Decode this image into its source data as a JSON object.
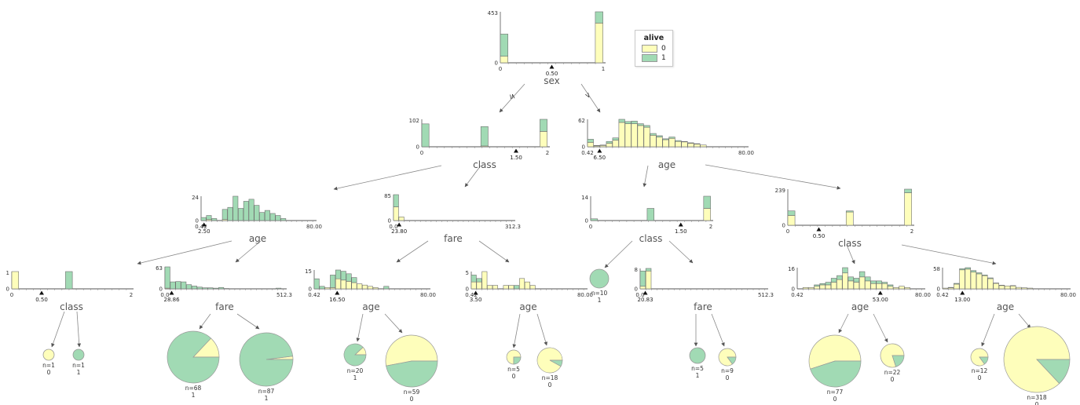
{
  "legend": {
    "title": "alive",
    "entries": [
      {
        "label": "0",
        "color": "#fefebb"
      },
      {
        "label": "1",
        "color": "#a1dab4"
      }
    ]
  },
  "edge_labels": {
    "left": "≤",
    "right": ">"
  },
  "colors": {
    "class0": "#fefebb",
    "class1": "#a1dab4",
    "bar_edge": "#707070",
    "axis": "#555555",
    "tick_text": "#333333",
    "feature_text": "#555555",
    "edge_line": "#888888"
  },
  "chart_data": [
    {
      "id": "root",
      "type": "histogram",
      "feature": "sex",
      "y_max": 453,
      "bin_w": 0.077,
      "x_ticks": [
        {
          "p": 0,
          "label": "0"
        },
        {
          "p": 1,
          "label": "1"
        }
      ],
      "split": {
        "p": 0.5,
        "label": "0.50"
      },
      "bars": [
        [
          0,
          58,
          197
        ],
        [
          0.923,
          353,
          100
        ]
      ]
    },
    {
      "id": "n2l",
      "type": "histogram",
      "feature": "class",
      "y_max": 102,
      "bin_w": 0.06,
      "x_ticks": [
        {
          "p": 0,
          "label": "0"
        },
        {
          "p": 1,
          "label": "2"
        }
      ],
      "split": {
        "p": 0.75,
        "label": "1.50"
      },
      "bars": [
        [
          0,
          0,
          85
        ],
        [
          0.47,
          3,
          72
        ],
        [
          0.94,
          57,
          45
        ]
      ]
    },
    {
      "id": "n2r",
      "type": "histogram",
      "feature": "age",
      "y_max": 62,
      "bin_w": 0.0395,
      "x_ticks": [
        {
          "p": 0,
          "label": "0.42"
        },
        {
          "p": 1,
          "label": "80.00"
        }
      ],
      "split": {
        "p": 0.076,
        "label": "6.50"
      },
      "bars": [
        [
          0,
          10,
          7
        ],
        [
          0.0395,
          2,
          1
        ],
        [
          0.079,
          3,
          1
        ],
        [
          0.1185,
          8,
          4
        ],
        [
          0.158,
          15,
          5
        ],
        [
          0.1975,
          55,
          7
        ],
        [
          0.237,
          52,
          5
        ],
        [
          0.2765,
          52,
          6
        ],
        [
          0.316,
          48,
          4
        ],
        [
          0.3555,
          44,
          4
        ],
        [
          0.395,
          26,
          4
        ],
        [
          0.4345,
          22,
          3
        ],
        [
          0.474,
          16,
          2
        ],
        [
          0.5135,
          19,
          3
        ],
        [
          0.553,
          12,
          2
        ],
        [
          0.5925,
          11,
          1
        ],
        [
          0.632,
          8,
          1
        ],
        [
          0.6715,
          6,
          1
        ],
        [
          0.711,
          4,
          0
        ]
      ]
    },
    {
      "id": "n3a",
      "type": "histogram",
      "feature": "age",
      "y_max": 24,
      "bin_w": 0.047,
      "x_ticks": [
        {
          "p": 0,
          "label": "0.42"
        },
        {
          "p": 1,
          "label": "80.00"
        }
      ],
      "split": {
        "p": 0.026,
        "label": "2.50"
      },
      "bars": [
        [
          0,
          0,
          3
        ],
        [
          0.047,
          1,
          4
        ],
        [
          0.094,
          0,
          2
        ],
        [
          0.188,
          1,
          10
        ],
        [
          0.235,
          0,
          13
        ],
        [
          0.282,
          0,
          24
        ],
        [
          0.329,
          0,
          12
        ],
        [
          0.376,
          0,
          19
        ],
        [
          0.423,
          0,
          21
        ],
        [
          0.47,
          0,
          15
        ],
        [
          0.517,
          0,
          8
        ],
        [
          0.564,
          0,
          10
        ],
        [
          0.611,
          0,
          7
        ],
        [
          0.658,
          0,
          5
        ],
        [
          0.705,
          0,
          2
        ]
      ]
    },
    {
      "id": "n3b",
      "type": "histogram",
      "feature": "fare",
      "y_max": 85,
      "bin_w": 0.045,
      "x_ticks": [
        {
          "p": 0,
          "label": "0.0"
        },
        {
          "p": 1,
          "label": "312.3"
        }
      ],
      "split": {
        "p": 0.047,
        "label": "23.80"
      },
      "bars": [
        [
          0,
          45,
          40
        ],
        [
          0.045,
          12,
          0
        ]
      ]
    },
    {
      "id": "n3c",
      "type": "histogram",
      "feature": "class",
      "y_max": 14,
      "bin_w": 0.06,
      "x_ticks": [
        {
          "p": 0,
          "label": "0"
        },
        {
          "p": 1,
          "label": "2"
        }
      ],
      "split": {
        "p": 0.75,
        "label": "1.50"
      },
      "bars": [
        [
          0,
          0,
          1
        ],
        [
          0.47,
          0,
          7
        ],
        [
          0.94,
          7,
          7
        ]
      ]
    },
    {
      "id": "n3d",
      "type": "histogram",
      "feature": "class",
      "y_max": 239,
      "bin_w": 0.06,
      "x_ticks": [
        {
          "p": 0,
          "label": "0"
        },
        {
          "p": 1,
          "label": "2"
        }
      ],
      "split": {
        "p": 0.25,
        "label": "0.50"
      },
      "bars": [
        [
          0,
          65,
          30
        ],
        [
          0.47,
          88,
          7
        ],
        [
          0.94,
          215,
          24
        ]
      ]
    },
    {
      "id": "n4a",
      "type": "histogram",
      "feature": "class",
      "y_max": 1,
      "bin_w": 0.06,
      "x_ticks": [
        {
          "p": 0,
          "label": "0"
        },
        {
          "p": 1,
          "label": "2"
        }
      ],
      "split": {
        "p": 0.25,
        "label": "0.50"
      },
      "bars": [
        [
          0,
          1,
          0
        ],
        [
          0.45,
          0,
          1
        ]
      ]
    },
    {
      "id": "n4b",
      "type": "histogram",
      "feature": "fare",
      "y_max": 63,
      "bin_w": 0.045,
      "x_ticks": [
        {
          "p": 0,
          "label": "0.0"
        },
        {
          "p": 1,
          "label": "512.3"
        }
      ],
      "split": {
        "p": 0.056,
        "label": "28.86"
      },
      "bars": [
        [
          0,
          2,
          61
        ],
        [
          0.045,
          0,
          20
        ],
        [
          0.09,
          0,
          21
        ],
        [
          0.135,
          0,
          20
        ],
        [
          0.18,
          0,
          12
        ],
        [
          0.225,
          0,
          8
        ],
        [
          0.27,
          0,
          5
        ],
        [
          0.315,
          0,
          3
        ],
        [
          0.36,
          0,
          3
        ],
        [
          0.405,
          0,
          2
        ],
        [
          0.45,
          0,
          4
        ],
        [
          0.495,
          0,
          1
        ],
        [
          0.93,
          0,
          2
        ]
      ]
    },
    {
      "id": "n4c",
      "type": "histogram",
      "feature": "age",
      "y_max": 15,
      "bin_w": 0.047,
      "x_ticks": [
        {
          "p": 0,
          "label": "0.42"
        },
        {
          "p": 1,
          "label": "80.00"
        }
      ],
      "split": {
        "p": 0.202,
        "label": "16.50"
      },
      "bars": [
        [
          0,
          0,
          8
        ],
        [
          0.047,
          0,
          2
        ],
        [
          0.094,
          1,
          0
        ],
        [
          0.141,
          1,
          10
        ],
        [
          0.188,
          8,
          7
        ],
        [
          0.235,
          7,
          7
        ],
        [
          0.282,
          6,
          6
        ],
        [
          0.329,
          5,
          4
        ],
        [
          0.376,
          4,
          0
        ],
        [
          0.423,
          3,
          0
        ],
        [
          0.47,
          2,
          0
        ],
        [
          0.517,
          1,
          0
        ],
        [
          0.611,
          0,
          2
        ]
      ]
    },
    {
      "id": "n4d",
      "type": "histogram",
      "feature": "age",
      "y_max": 5,
      "bin_w": 0.047,
      "x_ticks": [
        {
          "p": 0,
          "label": "0.42"
        },
        {
          "p": 1,
          "label": "80.00"
        }
      ],
      "split": {
        "p": 0.039,
        "label": "3.50"
      },
      "bars": [
        [
          0,
          2,
          2
        ],
        [
          0.047,
          2,
          1
        ],
        [
          0.094,
          5,
          0
        ],
        [
          0.141,
          1,
          0
        ],
        [
          0.188,
          1,
          0
        ],
        [
          0.282,
          1,
          0
        ],
        [
          0.329,
          1,
          0
        ],
        [
          0.376,
          0,
          1
        ],
        [
          0.423,
          3,
          0
        ],
        [
          0.47,
          2,
          0
        ],
        [
          0.517,
          1,
          0
        ]
      ]
    },
    {
      "id": "p9",
      "type": "pie",
      "n": "n=10",
      "cls": "1",
      "green": 1.0
    },
    {
      "id": "n4f",
      "type": "histogram",
      "feature": "fare",
      "y_max": 8,
      "bin_w": 0.045,
      "x_ticks": [
        {
          "p": 0,
          "label": "0.0"
        },
        {
          "p": 1,
          "label": "512.3"
        }
      ],
      "split": {
        "p": 0.041,
        "label": "20.83"
      },
      "bars": [
        [
          0,
          1,
          6
        ],
        [
          0.045,
          7,
          1
        ]
      ]
    },
    {
      "id": "n4g",
      "type": "histogram",
      "feature": "age",
      "y_max": 16,
      "bin_w": 0.045,
      "x_ticks": [
        {
          "p": 0,
          "label": "0.42"
        },
        {
          "p": 1,
          "label": "80.00"
        }
      ],
      "split": {
        "p": 0.661,
        "label": "53.00"
      },
      "bars": [
        [
          0.045,
          1,
          0
        ],
        [
          0.09,
          1,
          0
        ],
        [
          0.135,
          2,
          1
        ],
        [
          0.18,
          3,
          1
        ],
        [
          0.225,
          3,
          2
        ],
        [
          0.27,
          5,
          3
        ],
        [
          0.315,
          7,
          3
        ],
        [
          0.36,
          12,
          4
        ],
        [
          0.405,
          6,
          3
        ],
        [
          0.45,
          5,
          3
        ],
        [
          0.495,
          9,
          4
        ],
        [
          0.54,
          6,
          3
        ],
        [
          0.585,
          4,
          2
        ],
        [
          0.63,
          4,
          2
        ],
        [
          0.675,
          4,
          1
        ],
        [
          0.72,
          2,
          1
        ],
        [
          0.765,
          1,
          0
        ],
        [
          0.81,
          2,
          0
        ],
        [
          0.855,
          1,
          0
        ]
      ]
    },
    {
      "id": "n4h",
      "type": "histogram",
      "feature": "age",
      "y_max": 58,
      "bin_w": 0.045,
      "x_ticks": [
        {
          "p": 0,
          "label": "0.42"
        },
        {
          "p": 1,
          "label": "80.00"
        }
      ],
      "split": {
        "p": 0.158,
        "label": "13.00"
      },
      "bars": [
        [
          0,
          2,
          0
        ],
        [
          0.045,
          3,
          1
        ],
        [
          0.09,
          13,
          2
        ],
        [
          0.135,
          52,
          3
        ],
        [
          0.18,
          54,
          4
        ],
        [
          0.225,
          46,
          4
        ],
        [
          0.27,
          41,
          3
        ],
        [
          0.315,
          36,
          2
        ],
        [
          0.36,
          28,
          2
        ],
        [
          0.405,
          15,
          1
        ],
        [
          0.45,
          9,
          1
        ],
        [
          0.495,
          8,
          0
        ],
        [
          0.54,
          8,
          1
        ],
        [
          0.585,
          4,
          0
        ],
        [
          0.63,
          3,
          0
        ],
        [
          0.675,
          2,
          0
        ]
      ]
    },
    {
      "id": "p1",
      "type": "pie",
      "n": "n=1",
      "cls": "0",
      "green": 0.0
    },
    {
      "id": "p2",
      "type": "pie",
      "n": "n=1",
      "cls": "1",
      "green": 1.0
    },
    {
      "id": "p3",
      "type": "pie",
      "n": "n=68",
      "cls": "1",
      "green": 0.87
    },
    {
      "id": "p4",
      "type": "pie",
      "n": "n=87",
      "cls": "1",
      "green": 0.98
    },
    {
      "id": "p5",
      "type": "pie",
      "n": "n=20",
      "cls": "1",
      "green": 0.88
    },
    {
      "id": "p6",
      "type": "pie",
      "n": "n=59",
      "cls": "0",
      "green": 0.47
    },
    {
      "id": "p7",
      "type": "pie",
      "n": "n=5",
      "cls": "0",
      "green": 0.25
    },
    {
      "id": "p8",
      "type": "pie",
      "n": "n=18",
      "cls": "0",
      "green": 0.08
    },
    {
      "id": "p10",
      "type": "pie",
      "n": "n=5",
      "cls": "1",
      "green": 1.0
    },
    {
      "id": "p11",
      "type": "pie",
      "n": "n=9",
      "cls": "0",
      "green": 0.15
    },
    {
      "id": "p12",
      "type": "pie",
      "n": "n=77",
      "cls": "0",
      "green": 0.45
    },
    {
      "id": "p13",
      "type": "pie",
      "n": "n=22",
      "cls": "0",
      "green": 0.2
    },
    {
      "id": "p14",
      "type": "pie",
      "n": "n=12",
      "cls": "0",
      "green": 0.15
    },
    {
      "id": "p15",
      "type": "pie",
      "n": "n=318",
      "cls": "0",
      "green": 0.13
    }
  ]
}
